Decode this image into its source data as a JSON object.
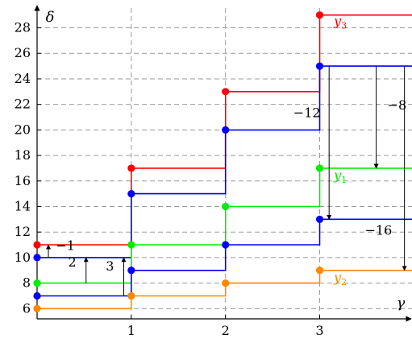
{
  "chart_data": {
    "type": "line",
    "step": true,
    "xlabel": "γ",
    "ylabel": "δ",
    "xlim": [
      0,
      3.98
    ],
    "ylim": [
      5.2,
      29.8
    ],
    "grid": "dashed",
    "x_ticks": [
      1,
      2,
      3
    ],
    "x_tick_labels": [
      "1",
      "2",
      "3"
    ],
    "y_ticks": [
      6,
      8,
      10,
      12,
      14,
      16,
      18,
      20,
      22,
      24,
      26,
      28
    ],
    "y_tick_labels": [
      "6",
      "8",
      "10",
      "12",
      "14",
      "16",
      "18",
      "20",
      "22",
      "24",
      "26",
      "28"
    ],
    "series": [
      {
        "name": "y3",
        "color": "#ff0000",
        "x": [
          0,
          1,
          2,
          3
        ],
        "values": [
          11,
          17,
          23,
          29
        ],
        "label": {
          "base": "y",
          "sub": "3",
          "at": [
            3.15,
            28.2
          ]
        }
      },
      {
        "color": "#0000ff",
        "x": [
          0,
          1,
          2,
          3
        ],
        "values": [
          10,
          15,
          20,
          25
        ]
      },
      {
        "name": "y1",
        "color": "#00ee00",
        "x": [
          0,
          1,
          2,
          3
        ],
        "values": [
          8,
          11,
          14,
          17
        ],
        "label": {
          "base": "y",
          "sub": "1",
          "at": [
            3.15,
            16.1
          ]
        }
      },
      {
        "color": "#0000ff",
        "x": [
          0,
          1,
          2,
          3
        ],
        "values": [
          7,
          9,
          11,
          13
        ]
      },
      {
        "name": "y2",
        "color": "#ff8800",
        "x": [
          0,
          1,
          2,
          3
        ],
        "values": [
          6,
          7,
          8,
          9
        ],
        "label": {
          "base": "y",
          "sub": "2",
          "at": [
            3.15,
            8.1
          ]
        }
      }
    ],
    "annotations": [
      {
        "text": "−1",
        "arrow_x": 0.12,
        "from": 10,
        "to": 11,
        "label_at": [
          0.2,
          10.6
        ]
      },
      {
        "text": "2",
        "arrow_x": 0.52,
        "from": 8,
        "to": 10,
        "label_at": [
          0.33,
          9.3
        ]
      },
      {
        "text": "3",
        "arrow_x": 0.92,
        "from": 7,
        "to": 10,
        "label_at": [
          0.73,
          9.0
        ]
      },
      {
        "text": "−12",
        "arrow_x": 3.1,
        "from": 25,
        "to": 13,
        "label_at": [
          2.72,
          21.0
        ]
      },
      {
        "text": "−8",
        "arrow_x": 3.6,
        "from": 25,
        "to": 17,
        "label_at": [
          3.72,
          21.6
        ]
      },
      {
        "text": "−16",
        "arrow_x": 3.9,
        "from": 25,
        "to": 9,
        "label_at": [
          3.48,
          11.8
        ]
      }
    ]
  }
}
